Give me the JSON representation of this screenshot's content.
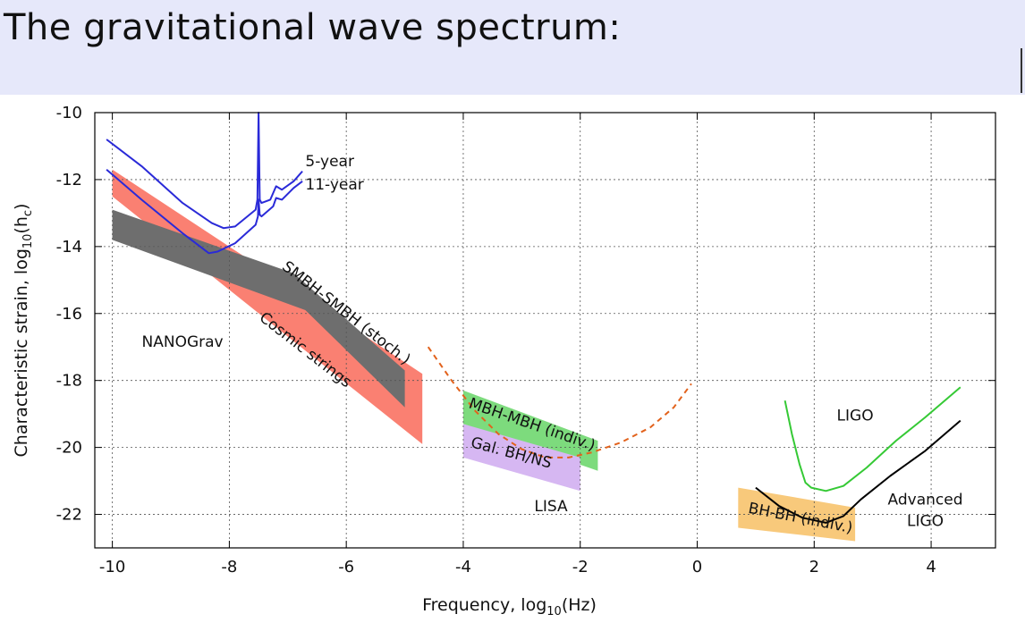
{
  "header": {
    "title": "The gravitational wave spectrum:"
  },
  "chart_data": {
    "type": "line",
    "xlabel": "Frequency, log10(Hz)",
    "ylabel": "Characteristic strain, log10(hc)",
    "xlim": [
      -10.3,
      5.1
    ],
    "ylim": [
      -23,
      -10
    ],
    "xticks": [
      -10,
      -8,
      -6,
      -4,
      -2,
      0,
      2,
      4
    ],
    "yticks": [
      -10,
      -12,
      -14,
      -16,
      -18,
      -20,
      -22
    ],
    "grid": true,
    "regions": [
      {
        "name": "Cosmic strings",
        "color": "#fa8072",
        "polygon": [
          [
            -10,
            -11.7
          ],
          [
            -10,
            -12.5
          ],
          [
            -4.7,
            -19.9
          ],
          [
            -4.7,
            -17.8
          ]
        ]
      },
      {
        "name": "SMBH-SMBH (stoch.)",
        "color": "#6e6e6e",
        "polygon": [
          [
            -10,
            -12.9
          ],
          [
            -10,
            -13.8
          ],
          [
            -6.7,
            -15.9
          ],
          [
            -5,
            -18.8
          ],
          [
            -5,
            -17.7
          ],
          [
            -6.9,
            -14.8
          ]
        ]
      },
      {
        "name": "MBH-MBH (indiv.)",
        "color": "#7ddb7d",
        "polygon": [
          [
            -4,
            -18.3
          ],
          [
            -4,
            -19.3
          ],
          [
            -1.7,
            -20.7
          ],
          [
            -1.7,
            -19.8
          ]
        ]
      },
      {
        "name": "Gal. BH/NS",
        "color": "#d6b7f2",
        "polygon": [
          [
            -4,
            -19.3
          ],
          [
            -4,
            -20.3
          ],
          [
            -2,
            -21.3
          ],
          [
            -2,
            -20.3
          ]
        ]
      },
      {
        "name": "BH-BH (indiv.)",
        "color": "#f8c97b",
        "polygon": [
          [
            0.7,
            -21.2
          ],
          [
            0.7,
            -22.4
          ],
          [
            2.7,
            -22.8
          ],
          [
            2.7,
            -21.8
          ]
        ]
      }
    ],
    "series": [
      {
        "name": "5-year",
        "color": "#2a2ad8",
        "points": [
          [
            -10.1,
            -10.8
          ],
          [
            -9.5,
            -11.6
          ],
          [
            -8.8,
            -12.7
          ],
          [
            -8.3,
            -13.3
          ],
          [
            -8.1,
            -13.45
          ],
          [
            -7.9,
            -13.4
          ],
          [
            -7.55,
            -12.9
          ],
          [
            -7.52,
            -12.6
          ],
          [
            -7.5,
            -10
          ],
          [
            -7.48,
            -12.6
          ],
          [
            -7.45,
            -12.7
          ],
          [
            -7.3,
            -12.6
          ],
          [
            -7.2,
            -12.2
          ],
          [
            -7.1,
            -12.3
          ],
          [
            -6.9,
            -12.05
          ],
          [
            -6.75,
            -11.75
          ]
        ]
      },
      {
        "name": "11-year",
        "color": "#2a2ad8",
        "points": [
          [
            -10.1,
            -11.7
          ],
          [
            -9.5,
            -12.6
          ],
          [
            -8.8,
            -13.6
          ],
          [
            -8.5,
            -14.0
          ],
          [
            -8.35,
            -14.2
          ],
          [
            -8.2,
            -14.15
          ],
          [
            -7.9,
            -13.9
          ],
          [
            -7.55,
            -13.35
          ],
          [
            -7.51,
            -13.1
          ],
          [
            -7.5,
            -12.6
          ],
          [
            -7.48,
            -13.05
          ],
          [
            -7.45,
            -13.1
          ],
          [
            -7.25,
            -12.8
          ],
          [
            -7.2,
            -12.55
          ],
          [
            -7.1,
            -12.6
          ],
          [
            -6.9,
            -12.25
          ],
          [
            -6.75,
            -12.05
          ]
        ]
      },
      {
        "name": "LISA",
        "color": "#e2621c",
        "dashed": true,
        "points": [
          [
            -4.6,
            -17.0
          ],
          [
            -4.2,
            -18.0
          ],
          [
            -3.8,
            -18.9
          ],
          [
            -3.4,
            -19.6
          ],
          [
            -3.0,
            -20.05
          ],
          [
            -2.6,
            -20.3
          ],
          [
            -2.2,
            -20.3
          ],
          [
            -1.8,
            -20.15
          ],
          [
            -1.3,
            -19.85
          ],
          [
            -0.8,
            -19.4
          ],
          [
            -0.4,
            -18.8
          ],
          [
            -0.1,
            -18.1
          ]
        ]
      },
      {
        "name": "LIGO",
        "color": "#35c935",
        "points": [
          [
            1.5,
            -18.6
          ],
          [
            1.62,
            -19.6
          ],
          [
            1.75,
            -20.5
          ],
          [
            1.85,
            -21.05
          ],
          [
            1.95,
            -21.2
          ],
          [
            2.2,
            -21.3
          ],
          [
            2.5,
            -21.15
          ],
          [
            2.9,
            -20.6
          ],
          [
            3.4,
            -19.8
          ],
          [
            3.9,
            -19.1
          ],
          [
            4.5,
            -18.2
          ]
        ]
      },
      {
        "name": "Advanced LIGO",
        "color": "#000000",
        "points": [
          [
            1.0,
            -21.2
          ],
          [
            1.4,
            -21.75
          ],
          [
            1.8,
            -22.1
          ],
          [
            2.2,
            -22.25
          ],
          [
            2.5,
            -22.05
          ],
          [
            2.8,
            -21.55
          ],
          [
            3.3,
            -20.85
          ],
          [
            3.9,
            -20.1
          ],
          [
            4.5,
            -19.2
          ]
        ]
      }
    ],
    "annotations": [
      {
        "text": "5-year",
        "x": -6.7,
        "y": -11.6,
        "anchor": "start",
        "rotate": 0
      },
      {
        "text": "11-year",
        "x": -6.7,
        "y": -12.3,
        "anchor": "start",
        "rotate": 0
      },
      {
        "text": "NANOGrav",
        "x": -8.8,
        "y": -17.0,
        "anchor": "middle",
        "rotate": 0
      },
      {
        "text": "SMBH-SMBH (stoch.)",
        "x": -6.05,
        "y": -16.1,
        "anchor": "middle",
        "rotate": 38
      },
      {
        "text": "Cosmic strings",
        "x": -6.75,
        "y": -17.2,
        "anchor": "middle",
        "rotate": 38
      },
      {
        "text": "MBH-MBH (indiv.)",
        "x": -2.85,
        "y": -19.45,
        "anchor": "middle",
        "rotate": 19
      },
      {
        "text": "Gal. BH/NS",
        "x": -3.2,
        "y": -20.3,
        "anchor": "middle",
        "rotate": 15
      },
      {
        "text": "LISA",
        "x": -2.5,
        "y": -21.9,
        "anchor": "middle",
        "rotate": 0
      },
      {
        "text": "LIGO",
        "x": 2.7,
        "y": -19.2,
        "anchor": "middle",
        "rotate": 0
      },
      {
        "text": "Advanced",
        "x": 3.9,
        "y": -21.7,
        "anchor": "middle",
        "rotate": 0
      },
      {
        "text": "LIGO",
        "x": 3.9,
        "y": -22.35,
        "anchor": "middle",
        "rotate": 0
      },
      {
        "text": "BH-BH (indiv.)",
        "x": 1.75,
        "y": -22.25,
        "anchor": "middle",
        "rotate": 11
      }
    ]
  }
}
